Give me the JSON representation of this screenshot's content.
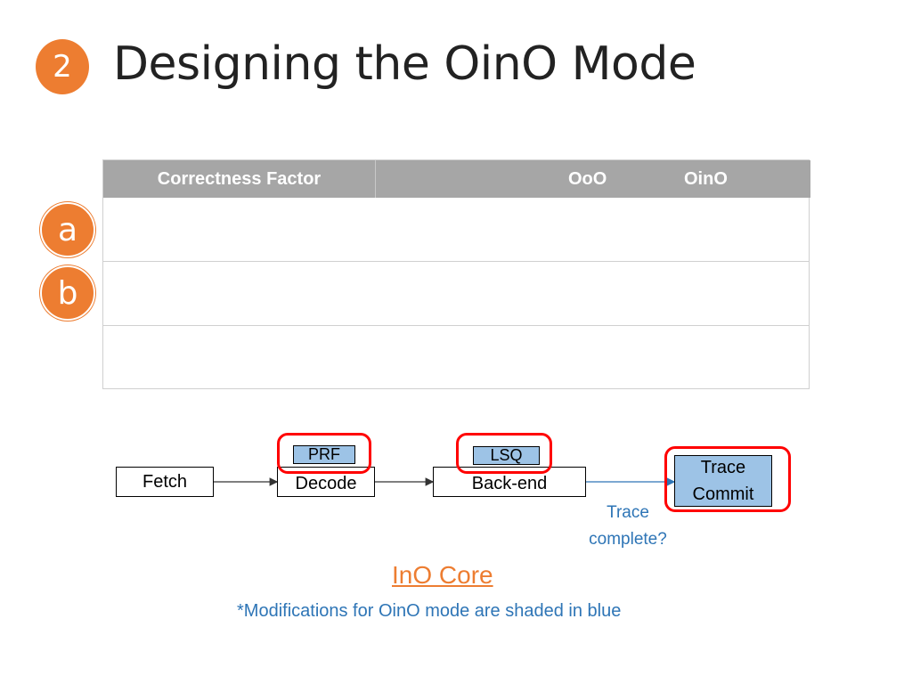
{
  "slide": {
    "number": "2",
    "title": "Designing the OinO Mode"
  },
  "markers": {
    "a": "a",
    "b": "b"
  },
  "table": {
    "headers": [
      "Correctness Factor",
      "OoO",
      "OinO"
    ],
    "rows": [
      [
        "",
        "",
        ""
      ],
      [
        "",
        "",
        ""
      ],
      [
        "",
        "",
        ""
      ]
    ]
  },
  "diagram": {
    "fetch": "Fetch",
    "prf": "PRF",
    "decode": "Decode",
    "lsq": "LSQ",
    "backend": "Back-end",
    "trace_commit": [
      "Trace",
      "Commit"
    ],
    "trace_question": [
      "Trace",
      "complete?"
    ],
    "colors": {
      "modified_fill": "#9dc3e6",
      "highlight": "#ff0000",
      "accent": "#ed7d31",
      "note_text": "#2e75b6"
    }
  },
  "caption": "InO Core",
  "footnote": "*Modifications for OinO mode are shaded in blue"
}
